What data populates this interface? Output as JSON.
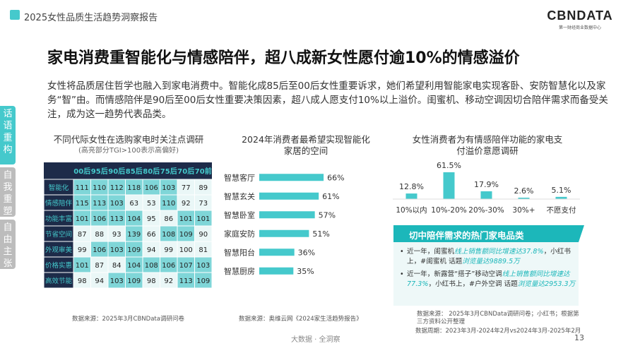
{
  "header": {
    "title": "2025女性品质生活趋势洞察报告",
    "logo": "CBNDATA",
    "logo_sub": "第一财经商业数据中心"
  },
  "main": {
    "title": "家电消费重智能化与情感陪伴，超八成新女性愿付逾10%的情感溢价",
    "intro": "女性将品质居住哲学也融入到家电消费中。智能化成85后至00后女性重要诉求，她们希望利用智能家电实现客卧、安防智慧化以及家务“智”由。而情感陪伴是90后至00后女性重要决策因素，超八成人愿支付10%以上溢价。闺蜜机、移动空调因切合陪伴需求而备受关注，成为这一趋势代表品类。"
  },
  "side_tabs": [
    {
      "label": "话语重构",
      "active": true
    },
    {
      "label": "自我重塑",
      "active": false
    },
    {
      "label": "自由主张",
      "active": false
    }
  ],
  "colors": {
    "accent": "#45c9cc",
    "accent_dark": "#1cb7ba",
    "heat_high": "#7fd6d8",
    "heat_low": "#eaf7f7",
    "header_bg": "#1d2b49",
    "header_text": "#45c9cc"
  },
  "chart_data": [
    {
      "type": "heatmap",
      "title": "不同代际女性在选购家电时关注点调研",
      "subtitle": "(高亮部分TGI>100表示高偏好)",
      "columns": [
        "00后",
        "95后",
        "90后",
        "85后",
        "80后",
        "75后",
        "70后",
        "70前"
      ],
      "rows": [
        "智能化",
        "情感陪伴",
        "功能丰富",
        "节省空间",
        "外观审美",
        "价格实惠",
        "高效节能"
      ],
      "values": [
        [
          111,
          110,
          112,
          118,
          106,
          103,
          77,
          89
        ],
        [
          115,
          113,
          103,
          63,
          53,
          110,
          92,
          73
        ],
        [
          101,
          106,
          113,
          104,
          95,
          86,
          101,
          101
        ],
        [
          87,
          88,
          93,
          139,
          66,
          108,
          109,
          90
        ],
        [
          99,
          106,
          103,
          109,
          94,
          99,
          100,
          81
        ],
        [
          101,
          87,
          84,
          104,
          108,
          106,
          107,
          103
        ],
        [
          98,
          94,
          103,
          109,
          98,
          92,
          113,
          109
        ]
      ],
      "source": "数据来源：2025年3月CBNData调研问卷"
    },
    {
      "type": "bar",
      "orientation": "horizontal",
      "title": "2024年消费者最希望实现智能化家居的空间",
      "categories": [
        "智慧客厅",
        "智慧玄关",
        "智慧卧室",
        "家庭安防",
        "智慧阳台",
        "智慧厨房"
      ],
      "values": [
        66,
        61,
        57,
        51,
        36,
        35
      ],
      "unit": "%",
      "source": "数据来源：奥维云网《2024家生活趋势报告》"
    },
    {
      "type": "bar",
      "title": "女性消费者为有情感陪伴功能的家电支付溢价意愿调研",
      "categories": [
        "10%以内",
        "10%-20%",
        "20%-30%",
        "30%+",
        "不愿支付"
      ],
      "values": [
        12.8,
        61.5,
        17.9,
        2.6,
        5.1
      ],
      "unit": "%",
      "source_line1": "数据来源：  2025年3月CBNData调研问卷；小红书；根据第三方资料公开整理",
      "source_line2": "数据周期：2023年3月-2024年2月vs2024年3月-2025年2月"
    }
  ],
  "callout": {
    "title": "切中陪伴需求的热门家电品类",
    "item1_a": "近一年，闺蜜机",
    "item1_b": "线上销售额同比增速达37.8%",
    "item1_c": "，小红书上，#闺蜜机 话题",
    "item1_d": "浏览量达9889.5万",
    "item2_a": "近一年，新露营“搭子”移动空调",
    "item2_b": "线上销售额同比增速达77.3%",
    "item2_c": "，小红书上，#户外空调 话题",
    "item2_d": "浏览量达2953.3万"
  },
  "footer": {
    "center": "大数据 · 全洞察",
    "page": "13"
  }
}
